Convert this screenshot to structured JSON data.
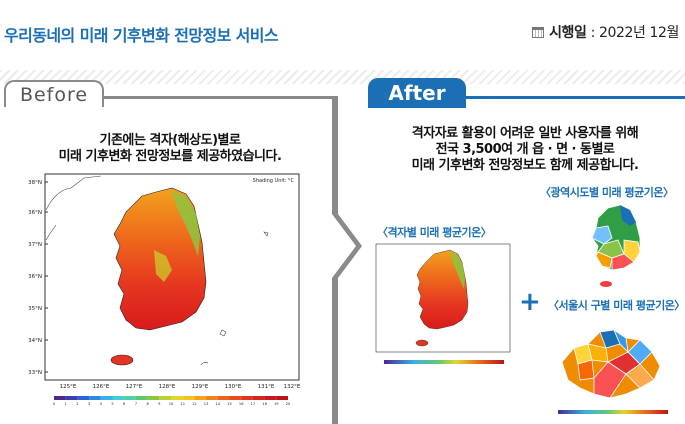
{
  "header": {
    "title": "우리동네의 미래 기후변화 전망정보 서비스",
    "date_label": "시행일",
    "date_sep": " : ",
    "date_value": "2022년 12월"
  },
  "before": {
    "tab_label": "Before",
    "caption_line1": "기존에는 격자(해상도)별로",
    "caption_line2": "미래 기후변화 전망정보를 제공하였습니다.",
    "map": {
      "unit_label": "Shading Unit: °C",
      "lat_labels": [
        "38°N",
        "36°N",
        "37°N",
        "36°N",
        "35°N",
        "34°N",
        "33°N"
      ],
      "lon_labels": [
        "125°E",
        "126°E",
        "127°E",
        "128°E",
        "129°E",
        "130°E",
        "131°E",
        "132°E"
      ],
      "scale_labels": [
        "0",
        "1",
        "2",
        "3",
        "4",
        "5",
        "6",
        "7",
        "8",
        "9",
        "10",
        "11",
        "12",
        "13",
        "14",
        "15",
        "16",
        "17",
        "18",
        "19",
        "20"
      ]
    }
  },
  "after": {
    "tab_label": "After",
    "caption_line1": "격자자료 활용이 어려운 일반 사용자를 위해",
    "caption_line2": "전국 3,500여 개 읍 · 면 · 동별로",
    "caption_line3": "미래 기후변화 전망정보도 함께 제공합니다.",
    "grid_map_label": "〈격자별 미래 평균기온〉",
    "metro_map_label": "〈광역시도별 미래 평균기온〉",
    "seoul_map_label": "〈서울시 구별 미래 평균기온〉",
    "plus_symbol": "+"
  },
  "colors": {
    "accent": "#1b6fb5",
    "frame": "#8a8a8a"
  }
}
